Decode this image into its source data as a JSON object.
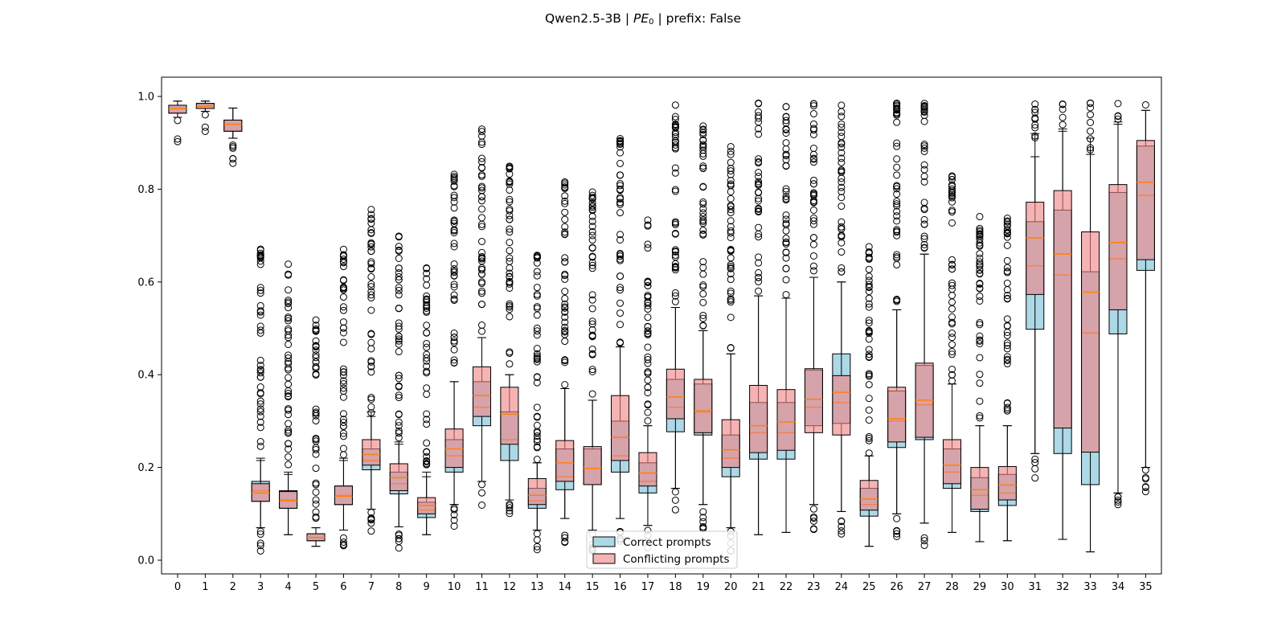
{
  "title": {
    "prefix": "Qwen2.5-3B | ",
    "metric_main": "PE",
    "metric_sub": "0",
    "suffix": " | prefix: False"
  },
  "colors": {
    "correct_fill": "#add8e6",
    "conflicting_fill": "#f08080",
    "conflicting_alpha": 0.6,
    "median": "#ff7f0e",
    "outline": "#000000"
  },
  "chart_data": {
    "type": "boxplot",
    "title": "Qwen2.5-3B | PE0 | prefix: False",
    "xlabel": "",
    "ylabel": "",
    "ylim": [
      -0.03,
      1.04
    ],
    "yticks": [
      0.0,
      0.2,
      0.4,
      0.6,
      0.8,
      1.0
    ],
    "categories": [
      "0",
      "1",
      "2",
      "3",
      "4",
      "5",
      "6",
      "7",
      "8",
      "9",
      "10",
      "11",
      "12",
      "13",
      "14",
      "15",
      "16",
      "17",
      "18",
      "19",
      "20",
      "21",
      "22",
      "23",
      "24",
      "25",
      "26",
      "27",
      "28",
      "29",
      "30",
      "31",
      "32",
      "33",
      "34",
      "35"
    ],
    "legend": {
      "position": "bottom-center",
      "entries": [
        "Correct prompts",
        "Conflicting prompts"
      ]
    },
    "series": [
      {
        "name": "Correct prompts",
        "boxes": [
          {
            "q1": 0.964,
            "median": 0.974,
            "q3": 0.981,
            "wlo": 0.955,
            "whi": 0.99
          },
          {
            "q1": 0.974,
            "median": 0.979,
            "q3": 0.985,
            "wlo": 0.968,
            "whi": 0.99
          },
          {
            "q1": 0.925,
            "median": 0.94,
            "q3": 0.949,
            "wlo": 0.91,
            "whi": 0.975
          },
          {
            "q1": 0.127,
            "median": 0.15,
            "q3": 0.17,
            "wlo": 0.07,
            "whi": 0.22
          },
          {
            "q1": 0.112,
            "median": 0.13,
            "q3": 0.15,
            "wlo": 0.055,
            "whi": 0.19
          },
          {
            "q1": 0.042,
            "median": 0.049,
            "q3": 0.057,
            "wlo": 0.03,
            "whi": 0.07
          },
          {
            "q1": 0.12,
            "median": 0.14,
            "q3": 0.16,
            "wlo": 0.065,
            "whi": 0.22
          },
          {
            "q1": 0.195,
            "median": 0.215,
            "q3": 0.24,
            "wlo": 0.11,
            "whi": 0.31
          },
          {
            "q1": 0.143,
            "median": 0.165,
            "q3": 0.19,
            "wlo": 0.072,
            "whi": 0.255
          },
          {
            "q1": 0.092,
            "median": 0.108,
            "q3": 0.125,
            "wlo": 0.055,
            "whi": 0.18
          },
          {
            "q1": 0.19,
            "median": 0.225,
            "q3": 0.26,
            "wlo": 0.12,
            "whi": 0.385
          },
          {
            "q1": 0.29,
            "median": 0.33,
            "q3": 0.385,
            "wlo": 0.17,
            "whi": 0.48
          },
          {
            "q1": 0.215,
            "median": 0.26,
            "q3": 0.32,
            "wlo": 0.13,
            "whi": 0.4
          },
          {
            "q1": 0.112,
            "median": 0.128,
            "q3": 0.155,
            "wlo": 0.065,
            "whi": 0.21
          },
          {
            "q1": 0.152,
            "median": 0.18,
            "q3": 0.24,
            "wlo": 0.09,
            "whi": 0.37
          },
          {
            "q1": 0.163,
            "median": 0.198,
            "q3": 0.24,
            "wlo": 0.065,
            "whi": 0.345
          },
          {
            "q1": 0.19,
            "median": 0.225,
            "q3": 0.3,
            "wlo": 0.09,
            "whi": 0.46
          },
          {
            "q1": 0.145,
            "median": 0.17,
            "q3": 0.21,
            "wlo": 0.075,
            "whi": 0.29
          },
          {
            "q1": 0.277,
            "median": 0.33,
            "q3": 0.39,
            "wlo": 0.155,
            "whi": 0.545
          },
          {
            "q1": 0.27,
            "median": 0.32,
            "q3": 0.38,
            "wlo": 0.12,
            "whi": 0.495
          },
          {
            "q1": 0.18,
            "median": 0.22,
            "q3": 0.27,
            "wlo": 0.07,
            "whi": 0.445
          },
          {
            "q1": 0.218,
            "median": 0.275,
            "q3": 0.34,
            "wlo": 0.055,
            "whi": 0.57
          },
          {
            "q1": 0.218,
            "median": 0.275,
            "q3": 0.34,
            "wlo": 0.06,
            "whi": 0.565
          },
          {
            "q1": 0.29,
            "median": 0.33,
            "q3": 0.41,
            "wlo": 0.12,
            "whi": 0.61
          },
          {
            "q1": 0.295,
            "median": 0.34,
            "q3": 0.445,
            "wlo": 0.105,
            "whi": 0.6
          },
          {
            "q1": 0.095,
            "median": 0.12,
            "q3": 0.155,
            "wlo": 0.03,
            "whi": 0.225
          },
          {
            "q1": 0.243,
            "median": 0.3,
            "q3": 0.365,
            "wlo": 0.1,
            "whi": 0.54
          },
          {
            "q1": 0.26,
            "median": 0.335,
            "q3": 0.42,
            "wlo": 0.08,
            "whi": 0.66
          },
          {
            "q1": 0.155,
            "median": 0.19,
            "q3": 0.24,
            "wlo": 0.06,
            "whi": 0.38
          },
          {
            "q1": 0.105,
            "median": 0.14,
            "q3": 0.178,
            "wlo": 0.04,
            "whi": 0.29
          },
          {
            "q1": 0.118,
            "median": 0.145,
            "q3": 0.185,
            "wlo": 0.042,
            "whi": 0.29
          },
          {
            "q1": 0.498,
            "median": 0.635,
            "q3": 0.73,
            "wlo": 0.23,
            "whi": 0.87
          },
          {
            "q1": 0.23,
            "median": 0.615,
            "q3": 0.755,
            "wlo": 0.045,
            "whi": 0.925
          },
          {
            "q1": 0.163,
            "median": 0.49,
            "q3": 0.622,
            "wlo": 0.018,
            "whi": 0.875
          },
          {
            "q1": 0.488,
            "median": 0.65,
            "q3": 0.793,
            "wlo": 0.145,
            "whi": 0.94
          },
          {
            "q1": 0.625,
            "median": 0.787,
            "q3": 0.893,
            "wlo": 0.2,
            "whi": 0.97
          }
        ]
      },
      {
        "name": "Conflicting prompts",
        "boxes": [
          {
            "q1": 0.964,
            "median": 0.974,
            "q3": 0.981,
            "wlo": 0.955,
            "whi": 0.99
          },
          {
            "q1": 0.974,
            "median": 0.979,
            "q3": 0.985,
            "wlo": 0.968,
            "whi": 0.99
          },
          {
            "q1": 0.925,
            "median": 0.94,
            "q3": 0.949,
            "wlo": 0.91,
            "whi": 0.975
          },
          {
            "q1": 0.127,
            "median": 0.145,
            "q3": 0.165,
            "wlo": 0.07,
            "whi": 0.215
          },
          {
            "q1": 0.112,
            "median": 0.128,
            "q3": 0.148,
            "wlo": 0.055,
            "whi": 0.185
          },
          {
            "q1": 0.042,
            "median": 0.049,
            "q3": 0.057,
            "wlo": 0.03,
            "whi": 0.07
          },
          {
            "q1": 0.12,
            "median": 0.138,
            "q3": 0.16,
            "wlo": 0.065,
            "whi": 0.215
          },
          {
            "q1": 0.205,
            "median": 0.228,
            "q3": 0.26,
            "wlo": 0.11,
            "whi": 0.32
          },
          {
            "q1": 0.15,
            "median": 0.178,
            "q3": 0.208,
            "wlo": 0.072,
            "whi": 0.25
          },
          {
            "q1": 0.1,
            "median": 0.118,
            "q3": 0.135,
            "wlo": 0.055,
            "whi": 0.19
          },
          {
            "q1": 0.2,
            "median": 0.24,
            "q3": 0.283,
            "wlo": 0.12,
            "whi": 0.385
          },
          {
            "q1": 0.31,
            "median": 0.355,
            "q3": 0.417,
            "wlo": 0.17,
            "whi": 0.48
          },
          {
            "q1": 0.25,
            "median": 0.315,
            "q3": 0.373,
            "wlo": 0.13,
            "whi": 0.4
          },
          {
            "q1": 0.12,
            "median": 0.14,
            "q3": 0.176,
            "wlo": 0.065,
            "whi": 0.21
          },
          {
            "q1": 0.17,
            "median": 0.21,
            "q3": 0.258,
            "wlo": 0.09,
            "whi": 0.37
          },
          {
            "q1": 0.163,
            "median": 0.198,
            "q3": 0.245,
            "wlo": 0.065,
            "whi": 0.345
          },
          {
            "q1": 0.215,
            "median": 0.265,
            "q3": 0.355,
            "wlo": 0.09,
            "whi": 0.46
          },
          {
            "q1": 0.16,
            "median": 0.188,
            "q3": 0.232,
            "wlo": 0.075,
            "whi": 0.29
          },
          {
            "q1": 0.305,
            "median": 0.352,
            "q3": 0.412,
            "wlo": 0.155,
            "whi": 0.545
          },
          {
            "q1": 0.275,
            "median": 0.322,
            "q3": 0.39,
            "wlo": 0.12,
            "whi": 0.495
          },
          {
            "q1": 0.2,
            "median": 0.238,
            "q3": 0.303,
            "wlo": 0.07,
            "whi": 0.445
          },
          {
            "q1": 0.232,
            "median": 0.29,
            "q3": 0.377,
            "wlo": 0.055,
            "whi": 0.57
          },
          {
            "q1": 0.237,
            "median": 0.298,
            "q3": 0.368,
            "wlo": 0.06,
            "whi": 0.565
          },
          {
            "q1": 0.275,
            "median": 0.347,
            "q3": 0.413,
            "wlo": 0.12,
            "whi": 0.61
          },
          {
            "q1": 0.27,
            "median": 0.362,
            "q3": 0.398,
            "wlo": 0.105,
            "whi": 0.6
          },
          {
            "q1": 0.108,
            "median": 0.132,
            "q3": 0.172,
            "wlo": 0.03,
            "whi": 0.225
          },
          {
            "q1": 0.255,
            "median": 0.305,
            "q3": 0.373,
            "wlo": 0.1,
            "whi": 0.54
          },
          {
            "q1": 0.265,
            "median": 0.345,
            "q3": 0.425,
            "wlo": 0.08,
            "whi": 0.66
          },
          {
            "q1": 0.165,
            "median": 0.205,
            "q3": 0.26,
            "wlo": 0.06,
            "whi": 0.38
          },
          {
            "q1": 0.11,
            "median": 0.152,
            "q3": 0.2,
            "wlo": 0.04,
            "whi": 0.29
          },
          {
            "q1": 0.13,
            "median": 0.162,
            "q3": 0.202,
            "wlo": 0.042,
            "whi": 0.29
          },
          {
            "q1": 0.573,
            "median": 0.695,
            "q3": 0.772,
            "wlo": 0.23,
            "whi": 0.92
          },
          {
            "q1": 0.285,
            "median": 0.66,
            "q3": 0.797,
            "wlo": 0.045,
            "whi": 0.93
          },
          {
            "q1": 0.233,
            "median": 0.578,
            "q3": 0.708,
            "wlo": 0.018,
            "whi": 0.91
          },
          {
            "q1": 0.54,
            "median": 0.685,
            "q3": 0.81,
            "wlo": 0.145,
            "whi": 0.945
          },
          {
            "q1": 0.648,
            "median": 0.815,
            "q3": 0.905,
            "wlo": 0.2,
            "whi": 0.97
          }
        ]
      }
    ]
  }
}
